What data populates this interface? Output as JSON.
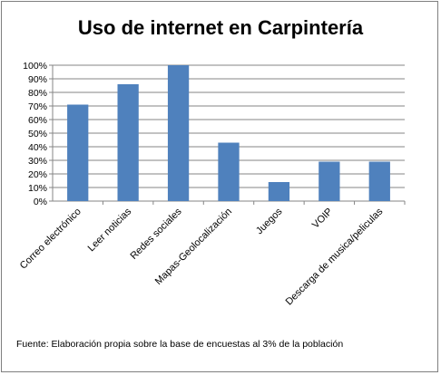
{
  "chart_data": {
    "type": "bar",
    "title": "Uso de internet en Carpintería",
    "categories": [
      "Correo electrónico",
      "Leer noticias",
      "Redes sociales",
      "Mapas-Geolocalización",
      "Juegos",
      "VOIP",
      "Descarga de musica/peliculas"
    ],
    "values": [
      71,
      86,
      100,
      43,
      14,
      29,
      29
    ],
    "ylim": [
      0,
      100
    ],
    "yticks": [
      "0%",
      "10%",
      "20%",
      "30%",
      "40%",
      "50%",
      "60%",
      "70%",
      "80%",
      "90%",
      "100%"
    ],
    "xlabel": "",
    "ylabel": "",
    "grid": true,
    "bar_color": "#4f81bd"
  },
  "source_note": "Fuente:  Elaboración propia sobre la base de encuestas al 3%  de la población"
}
